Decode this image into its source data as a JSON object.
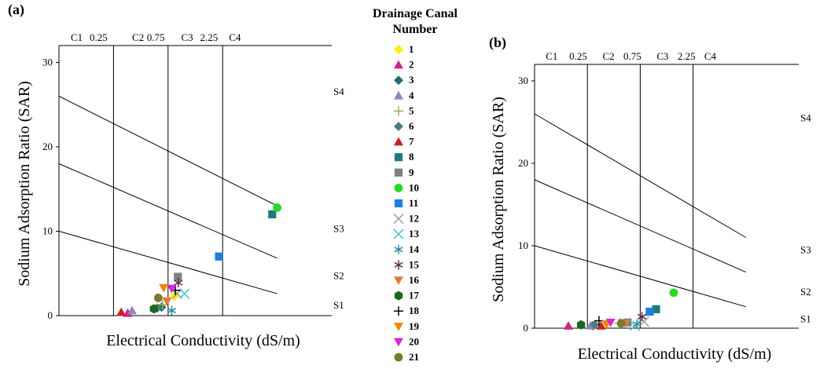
{
  "legend": {
    "title_line1": "Drainage Canal",
    "title_line2": "Number",
    "entries": [
      {
        "label": "1",
        "marker": "diamond",
        "color": "#ffee00"
      },
      {
        "label": "2",
        "marker": "triangle",
        "color": "#d4208a"
      },
      {
        "label": "3",
        "marker": "diamond",
        "color": "#1d6f6f"
      },
      {
        "label": "4",
        "marker": "triangle",
        "color": "#8c86c0"
      },
      {
        "label": "5",
        "marker": "plus",
        "color": "#a6a64a"
      },
      {
        "label": "6",
        "marker": "diamond",
        "color": "#4a7f7f"
      },
      {
        "label": "7",
        "marker": "triangle",
        "color": "#cc1f1f"
      },
      {
        "label": "8",
        "marker": "square",
        "color": "#1e7a7a"
      },
      {
        "label": "9",
        "marker": "square",
        "color": "#808080"
      },
      {
        "label": "10",
        "marker": "circle",
        "color": "#22dd22"
      },
      {
        "label": "11",
        "marker": "square",
        "color": "#1a7fe0"
      },
      {
        "label": "12",
        "marker": "x",
        "color": "#9a9ab0"
      },
      {
        "label": "13",
        "marker": "x",
        "color": "#44c4d4"
      },
      {
        "label": "14",
        "marker": "asterisk",
        "color": "#2a8aa0"
      },
      {
        "label": "15",
        "marker": "asterisk",
        "color": "#5a2a4a"
      },
      {
        "label": "16",
        "marker": "triangle-down",
        "color": "#e07a3a"
      },
      {
        "label": "17",
        "marker": "hexagon",
        "color": "#1a6a1a"
      },
      {
        "label": "18",
        "marker": "plus",
        "color": "#000000"
      },
      {
        "label": "19",
        "marker": "triangle-down",
        "color": "#ee8800"
      },
      {
        "label": "20",
        "marker": "triangle-down",
        "color": "#dd22dd"
      },
      {
        "label": "21",
        "marker": "circle",
        "color": "#7a7a30"
      }
    ]
  },
  "chart_data": [
    {
      "panel": "(a)",
      "type": "scatter",
      "xlabel": "Electrical Conductivity (dS/m)",
      "ylabel": "Sodium Adsorption Ratio (SAR)",
      "ylim": [
        0,
        32
      ],
      "y_ticks": [
        0,
        10,
        20,
        30
      ],
      "y_tick_labels": [
        "0",
        "10",
        "20",
        "30"
      ],
      "ec_scale_points": [
        [
          0.25,
          0.2
        ],
        [
          0.75,
          0.4
        ],
        [
          2.25,
          0.6
        ],
        [
          3.9,
          0.8
        ]
      ],
      "dividers_x": [
        0.2,
        0.4,
        0.6
      ],
      "top_labels": [
        {
          "text": "C1",
          "x": 0.065
        },
        {
          "text": "0.25",
          "x": 0.145
        },
        {
          "text": "C2",
          "x": 0.29
        },
        {
          "text": "0.75",
          "x": 0.355
        },
        {
          "text": "C3",
          "x": 0.47
        },
        {
          "text": "2.25",
          "x": 0.55
        },
        {
          "text": "C4",
          "x": 0.645
        }
      ],
      "zone_lines": [
        {
          "from": [
            0,
            26
          ],
          "to": [
            0.8,
            13
          ]
        },
        {
          "from": [
            0,
            18
          ],
          "to": [
            0.8,
            6.8
          ]
        },
        {
          "from": [
            0,
            10
          ],
          "to": [
            0.8,
            2.6
          ]
        }
      ],
      "zone_labels": [
        {
          "text": "S4",
          "y": 26.5
        },
        {
          "text": "S3",
          "y": 10.3
        },
        {
          "text": "S2",
          "y": 4.7
        },
        {
          "text": "S1",
          "y": 1.2
        }
      ],
      "points": [
        {
          "canal": "1",
          "ec": 0.92,
          "sar": 2.3
        },
        {
          "canal": "2",
          "ec": 0.38,
          "sar": 0.3
        },
        {
          "canal": "3",
          "ec": 0.69,
          "sar": 1.0
        },
        {
          "canal": "4",
          "ec": 0.42,
          "sar": 0.6
        },
        {
          "canal": "5",
          "ec": 0.7,
          "sar": 1.3
        },
        {
          "canal": "6",
          "ec": 0.65,
          "sar": 0.9
        },
        {
          "canal": "7",
          "ec": 0.32,
          "sar": 0.4
        },
        {
          "canal": "8",
          "ec": 3.75,
          "sar": 12.0
        },
        {
          "canal": "9",
          "ec": 1.02,
          "sar": 4.6
        },
        {
          "canal": "10",
          "ec": 3.9,
          "sar": 12.8
        },
        {
          "canal": "11",
          "ec": 2.15,
          "sar": 7.0
        },
        {
          "canal": "12",
          "ec": 1.0,
          "sar": 2.6
        },
        {
          "canal": "13",
          "ec": 1.2,
          "sar": 2.6
        },
        {
          "canal": "14",
          "ec": 0.85,
          "sar": 0.6
        },
        {
          "canal": "15",
          "ec": 1.03,
          "sar": 3.9
        },
        {
          "canal": "16",
          "ec": 0.74,
          "sar": 1.7
        },
        {
          "canal": "17",
          "ec": 0.62,
          "sar": 0.8
        },
        {
          "canal": "18",
          "ec": 0.95,
          "sar": 3.0
        },
        {
          "canal": "19",
          "ec": 0.71,
          "sar": 3.3
        },
        {
          "canal": "20",
          "ec": 0.85,
          "sar": 3.2
        },
        {
          "canal": "21",
          "ec": 0.66,
          "sar": 2.1
        }
      ]
    },
    {
      "panel": "(b)",
      "type": "scatter",
      "xlabel": "Electrical Conductivity (dS/m)",
      "ylabel": "Sodium Adsorption Ratio (SAR)",
      "ylim": [
        0,
        32
      ],
      "y_ticks": [
        0,
        10,
        20,
        30
      ],
      "y_tick_labels": [
        "0",
        "10",
        "20",
        "30"
      ],
      "ec_scale_points": [
        [
          0.25,
          0.2
        ],
        [
          0.75,
          0.4
        ],
        [
          2.25,
          0.6
        ],
        [
          3.9,
          0.8
        ]
      ],
      "dividers_x": [
        0.2,
        0.4,
        0.6
      ],
      "top_labels": [
        {
          "text": "C1",
          "x": 0.065
        },
        {
          "text": "0.25",
          "x": 0.165
        },
        {
          "text": "C2",
          "x": 0.28
        },
        {
          "text": "0.75",
          "x": 0.37
        },
        {
          "text": "C3",
          "x": 0.485
        },
        {
          "text": "2.25",
          "x": 0.575
        },
        {
          "text": "C4",
          "x": 0.665
        }
      ],
      "zone_lines": [
        {
          "from": [
            0,
            26
          ],
          "to": [
            0.8,
            11
          ]
        },
        {
          "from": [
            0,
            18
          ],
          "to": [
            0.8,
            6.8
          ]
        },
        {
          "from": [
            0,
            10
          ],
          "to": [
            0.8,
            2.6
          ]
        }
      ],
      "zone_labels": [
        {
          "text": "S4",
          "y": 25.5
        },
        {
          "text": "S3",
          "y": 9.5
        },
        {
          "text": "S2",
          "y": 4.4
        },
        {
          "text": "S1",
          "y": 1.1
        }
      ],
      "points": [
        {
          "canal": "1",
          "ec": 0.44,
          "sar": 0.6
        },
        {
          "canal": "2",
          "ec": 0.16,
          "sar": 0.2
        },
        {
          "canal": "3",
          "ec": 0.3,
          "sar": 0.3
        },
        {
          "canal": "4",
          "ec": 0.28,
          "sar": 0.3
        },
        {
          "canal": "5",
          "ec": 0.55,
          "sar": 0.6
        },
        {
          "canal": "6",
          "ec": 0.32,
          "sar": 0.4
        },
        {
          "canal": "7",
          "ec": 0.38,
          "sar": 0.2
        },
        {
          "canal": "8",
          "ec": 1.2,
          "sar": 2.3
        },
        {
          "canal": "9",
          "ec": 0.63,
          "sar": 0.7
        },
        {
          "canal": "10",
          "ec": 1.7,
          "sar": 4.3
        },
        {
          "canal": "11",
          "ec": 1.02,
          "sar": 2.0
        },
        {
          "canal": "12",
          "ec": 0.86,
          "sar": 0.8
        },
        {
          "canal": "13",
          "ec": 0.7,
          "sar": 0.3
        },
        {
          "canal": "14",
          "ec": 0.72,
          "sar": 0.5
        },
        {
          "canal": "15",
          "ec": 0.8,
          "sar": 1.4
        },
        {
          "canal": "16",
          "ec": 0.61,
          "sar": 0.6
        },
        {
          "canal": "17",
          "ec": 0.22,
          "sar": 0.4
        },
        {
          "canal": "18",
          "ec": 0.36,
          "sar": 0.9
        },
        {
          "canal": "19",
          "ec": 0.43,
          "sar": 0.5
        },
        {
          "canal": "20",
          "ec": 0.47,
          "sar": 0.7
        },
        {
          "canal": "21",
          "ec": 0.57,
          "sar": 0.6
        }
      ]
    }
  ]
}
